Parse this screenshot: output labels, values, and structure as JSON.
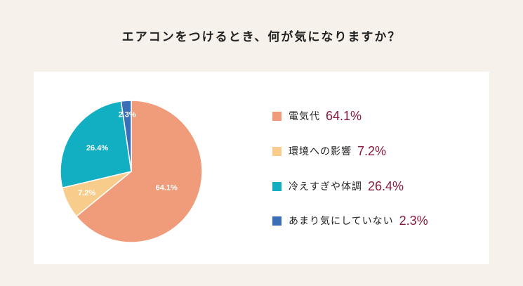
{
  "chart_data": {
    "type": "pie",
    "title": "エアコンをつけるとき、何が気になりますか？",
    "slices": [
      {
        "label": "電気代",
        "value": 64.1,
        "display": "64.1%",
        "color": "#f09c7a"
      },
      {
        "label": "環境への影響",
        "value": 7.2,
        "display": "7.2%",
        "color": "#f8cd8c"
      },
      {
        "label": "冷えすぎや体調",
        "value": 26.4,
        "display": "26.4%",
        "color": "#12aec2"
      },
      {
        "label": "あまり気にしていない",
        "value": 2.3,
        "display": "2.3%",
        "color": "#3a6fb8"
      }
    ],
    "start_angle_deg": 0,
    "direction": "clockwise",
    "legend_placement": "right",
    "value_color": "#8a1a3c"
  }
}
